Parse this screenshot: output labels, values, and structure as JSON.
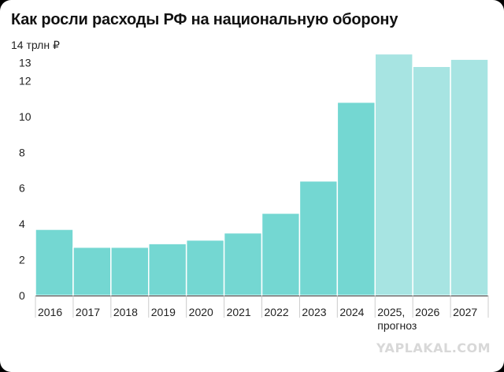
{
  "chart_data": {
    "type": "bar",
    "title": "Как росли расходы РФ на национальную оборону",
    "ylabel": "",
    "xlabel": "",
    "unit_label": "14 трлн ₽",
    "ylim": [
      0,
      14
    ],
    "yticks": [
      0,
      2,
      4,
      6,
      8,
      10,
      12,
      13
    ],
    "ytick_labels": [
      "0",
      "2",
      "4",
      "6",
      "8",
      "10",
      "12",
      "13"
    ],
    "categories": [
      "2016",
      "2017",
      "2018",
      "2019",
      "2020",
      "2021",
      "2022",
      "2023",
      "2024",
      "2025,\nпрогноз",
      "2026",
      "2027"
    ],
    "values": [
      3.7,
      2.7,
      2.7,
      2.9,
      3.1,
      3.5,
      4.6,
      6.4,
      10.8,
      13.5,
      12.8,
      13.2
    ],
    "forecast_from_index": 9,
    "grid": true,
    "colors": {
      "actual": "#74d7d2",
      "forecast": "#a7e4e2",
      "divider": "#ffffff",
      "axis": "#333333"
    }
  },
  "watermark": "YAPLAKAL.COM"
}
